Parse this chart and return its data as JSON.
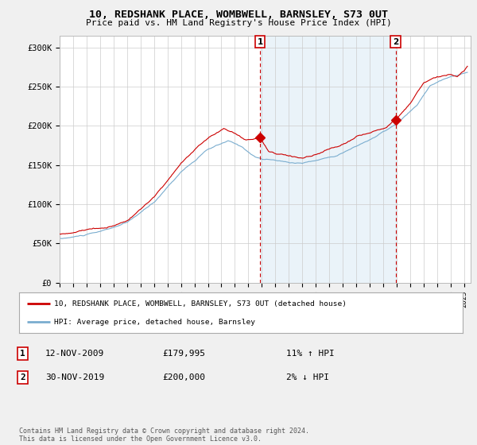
{
  "title": "10, REDSHANK PLACE, WOMBWELL, BARNSLEY, S73 0UT",
  "subtitle": "Price paid vs. HM Land Registry's House Price Index (HPI)",
  "ylabel_ticks": [
    "£0",
    "£50K",
    "£100K",
    "£150K",
    "£200K",
    "£250K",
    "£300K"
  ],
  "ylim": [
    0,
    315000
  ],
  "xlim_start": 1995.0,
  "xlim_end": 2025.5,
  "sale1_date": 2009.87,
  "sale1_label": "1",
  "sale1_price": 179995,
  "sale2_date": 2019.92,
  "sale2_label": "2",
  "sale2_price": 200000,
  "legend_line1": "10, REDSHANK PLACE, WOMBWELL, BARNSLEY, S73 0UT (detached house)",
  "legend_line2": "HPI: Average price, detached house, Barnsley",
  "footer": "Contains HM Land Registry data © Crown copyright and database right 2024.\nThis data is licensed under the Open Government Licence v3.0.",
  "line_color_red": "#cc0000",
  "line_color_blue": "#7aadcf",
  "fill_color_blue": "#daeaf5",
  "background_color": "#f0f0f0",
  "plot_bg_color": "#ffffff",
  "grid_color": "#cccccc",
  "marker_box_color": "#cc0000",
  "sale1_info_date": "12-NOV-2009",
  "sale1_info_price": "£179,995",
  "sale1_info_hpi": "11% ↑ HPI",
  "sale2_info_date": "30-NOV-2019",
  "sale2_info_price": "£200,000",
  "sale2_info_hpi": "2% ↓ HPI"
}
